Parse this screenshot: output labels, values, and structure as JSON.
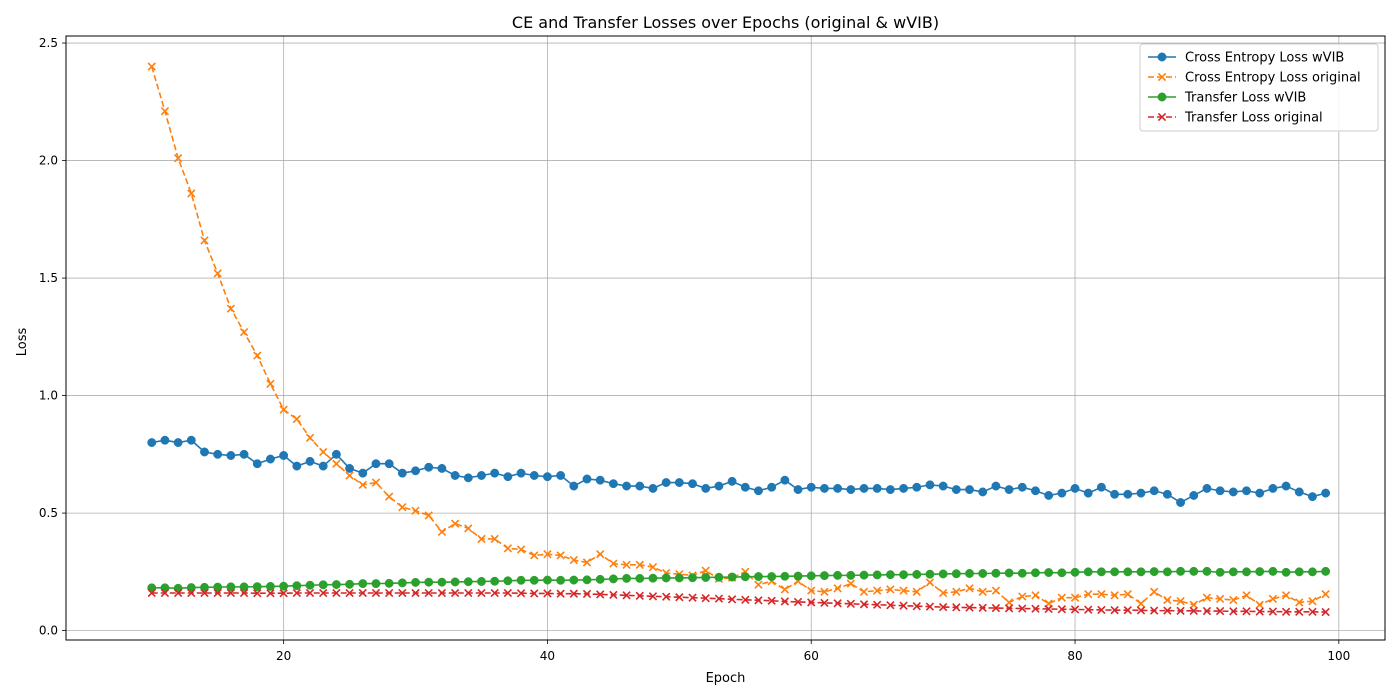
{
  "chart_data": {
    "type": "line",
    "title": "CE and Transfer Losses over Epochs (original & wVIB)",
    "xlabel": "Epoch",
    "ylabel": "Loss",
    "xlim": [
      3.5,
      103.5
    ],
    "ylim": [
      -0.04,
      2.53
    ],
    "xticks": [
      20,
      40,
      60,
      80,
      100
    ],
    "yticks": [
      0.0,
      0.5,
      1.0,
      1.5,
      2.0,
      2.5
    ],
    "xtick_labels": [
      "20",
      "40",
      "60",
      "80",
      "100"
    ],
    "ytick_labels": [
      "0.0",
      "0.5",
      "1.0",
      "1.5",
      "2.0",
      "2.5"
    ],
    "grid": true,
    "legend_position": "top-right",
    "x": [
      10,
      11,
      12,
      13,
      14,
      15,
      16,
      17,
      18,
      19,
      20,
      21,
      22,
      23,
      24,
      25,
      26,
      27,
      28,
      29,
      30,
      31,
      32,
      33,
      34,
      35,
      36,
      37,
      38,
      39,
      40,
      41,
      42,
      43,
      44,
      45,
      46,
      47,
      48,
      49,
      50,
      51,
      52,
      53,
      54,
      55,
      56,
      57,
      58,
      59,
      60,
      61,
      62,
      63,
      64,
      65,
      66,
      67,
      68,
      69,
      70,
      71,
      72,
      73,
      74,
      75,
      76,
      77,
      78,
      79,
      80,
      81,
      82,
      83,
      84,
      85,
      86,
      87,
      88,
      89,
      90,
      91,
      92,
      93,
      94,
      95,
      96,
      97,
      98,
      99
    ],
    "series": [
      {
        "name": "Cross Entropy Loss wVIB",
        "color": "#1f77b4",
        "linestyle": "solid",
        "marker": "circle",
        "values": [
          0.8,
          0.81,
          0.8,
          0.81,
          0.76,
          0.75,
          0.745,
          0.75,
          0.71,
          0.73,
          0.745,
          0.7,
          0.72,
          0.7,
          0.75,
          0.69,
          0.67,
          0.71,
          0.71,
          0.67,
          0.68,
          0.695,
          0.69,
          0.66,
          0.65,
          0.66,
          0.67,
          0.655,
          0.67,
          0.66,
          0.655,
          0.66,
          0.615,
          0.645,
          0.64,
          0.625,
          0.615,
          0.615,
          0.605,
          0.63,
          0.63,
          0.625,
          0.605,
          0.615,
          0.635,
          0.61,
          0.595,
          0.61,
          0.64,
          0.6,
          0.61,
          0.605,
          0.605,
          0.6,
          0.605,
          0.605,
          0.6,
          0.605,
          0.61,
          0.62,
          0.615,
          0.6,
          0.6,
          0.59,
          0.615,
          0.6,
          0.61,
          0.595,
          0.575,
          0.585,
          0.605,
          0.585,
          0.61,
          0.58,
          0.58,
          0.585,
          0.595,
          0.58,
          0.545,
          0.575,
          0.605,
          0.595,
          0.59,
          0.595,
          0.585,
          0.605,
          0.615,
          0.59,
          0.57,
          0.585
        ]
      },
      {
        "name": "Cross Entropy Loss original",
        "color": "#ff7f0e",
        "linestyle": "dashed",
        "marker": "x",
        "values": [
          2.4,
          2.21,
          2.01,
          1.86,
          1.66,
          1.52,
          1.37,
          1.27,
          1.17,
          1.05,
          0.94,
          0.9,
          0.82,
          0.76,
          0.71,
          0.66,
          0.62,
          0.63,
          0.57,
          0.525,
          0.51,
          0.49,
          0.42,
          0.455,
          0.435,
          0.39,
          0.39,
          0.35,
          0.345,
          0.32,
          0.325,
          0.32,
          0.3,
          0.29,
          0.325,
          0.285,
          0.28,
          0.28,
          0.27,
          0.245,
          0.24,
          0.235,
          0.255,
          0.22,
          0.225,
          0.25,
          0.195,
          0.21,
          0.175,
          0.21,
          0.17,
          0.165,
          0.18,
          0.2,
          0.165,
          0.17,
          0.175,
          0.17,
          0.165,
          0.205,
          0.16,
          0.165,
          0.18,
          0.165,
          0.17,
          0.12,
          0.145,
          0.15,
          0.115,
          0.14,
          0.14,
          0.155,
          0.155,
          0.15,
          0.155,
          0.115,
          0.165,
          0.13,
          0.125,
          0.11,
          0.14,
          0.135,
          0.13,
          0.15,
          0.11,
          0.135,
          0.15,
          0.12,
          0.125,
          0.155
        ]
      },
      {
        "name": "Transfer Loss wVIB",
        "color": "#2ca02c",
        "linestyle": "solid",
        "marker": "circle",
        "values": [
          0.182,
          0.182,
          0.18,
          0.183,
          0.184,
          0.185,
          0.186,
          0.186,
          0.187,
          0.188,
          0.189,
          0.191,
          0.193,
          0.195,
          0.196,
          0.197,
          0.2,
          0.2,
          0.201,
          0.203,
          0.205,
          0.206,
          0.206,
          0.207,
          0.208,
          0.209,
          0.21,
          0.212,
          0.214,
          0.214,
          0.215,
          0.214,
          0.215,
          0.216,
          0.218,
          0.22,
          0.222,
          0.222,
          0.223,
          0.224,
          0.224,
          0.225,
          0.226,
          0.227,
          0.228,
          0.229,
          0.23,
          0.23,
          0.231,
          0.232,
          0.233,
          0.234,
          0.235,
          0.235,
          0.236,
          0.237,
          0.238,
          0.238,
          0.239,
          0.24,
          0.241,
          0.242,
          0.243,
          0.243,
          0.244,
          0.245,
          0.244,
          0.246,
          0.247,
          0.246,
          0.248,
          0.25,
          0.25,
          0.25,
          0.25,
          0.25,
          0.251,
          0.25,
          0.252,
          0.252,
          0.252,
          0.248,
          0.25,
          0.25,
          0.251,
          0.252,
          0.248,
          0.25,
          0.25,
          0.252
        ]
      },
      {
        "name": "Transfer Loss original",
        "color": "#d62728",
        "linestyle": "dashed",
        "marker": "x",
        "values": [
          0.16,
          0.16,
          0.16,
          0.16,
          0.16,
          0.16,
          0.16,
          0.16,
          0.159,
          0.159,
          0.159,
          0.16,
          0.16,
          0.16,
          0.16,
          0.16,
          0.16,
          0.16,
          0.16,
          0.16,
          0.16,
          0.16,
          0.16,
          0.16,
          0.16,
          0.16,
          0.16,
          0.16,
          0.159,
          0.158,
          0.158,
          0.157,
          0.157,
          0.156,
          0.154,
          0.152,
          0.15,
          0.148,
          0.146,
          0.144,
          0.142,
          0.14,
          0.138,
          0.136,
          0.133,
          0.131,
          0.129,
          0.127,
          0.124,
          0.122,
          0.12,
          0.118,
          0.116,
          0.114,
          0.112,
          0.11,
          0.108,
          0.106,
          0.104,
          0.102,
          0.1,
          0.099,
          0.098,
          0.097,
          0.096,
          0.095,
          0.094,
          0.093,
          0.092,
          0.091,
          0.09,
          0.089,
          0.088,
          0.087,
          0.087,
          0.086,
          0.085,
          0.085,
          0.084,
          0.084,
          0.083,
          0.083,
          0.082,
          0.082,
          0.081,
          0.081,
          0.08,
          0.08,
          0.08,
          0.079
        ]
      }
    ]
  }
}
